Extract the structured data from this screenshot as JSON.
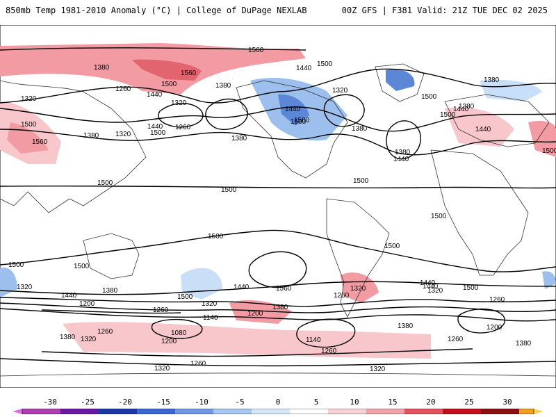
{
  "header": {
    "left": "850mb Temp 1981-2010 Anomaly (°C) | College of DuPage NEXLAB",
    "right": "00Z GFS | F381 Valid: 21Z TUE DEC 02 2025"
  },
  "map": {
    "contour_labels": [
      "1560",
      "1500",
      "1380",
      "1320",
      "1440",
      "1500",
      "1560",
      "1320",
      "1380",
      "1440",
      "1500",
      "1380",
      "1320",
      "1260",
      "1440",
      "1500",
      "1500",
      "1440",
      "1500",
      "1380",
      "1440",
      "1380",
      "1500",
      "1560",
      "1380",
      "1320",
      "1260",
      "1500",
      "1380",
      "1500",
      "1440",
      "1500",
      "1500",
      "1500",
      "1380",
      "1440",
      "1500",
      "1500",
      "1500",
      "1500",
      "1500",
      "1440",
      "1560",
      "1320",
      "1440",
      "1500",
      "1320",
      "1380",
      "1440",
      "1200",
      "1260",
      "1320",
      "1380",
      "1260",
      "1440",
      "1320",
      "1500",
      "1200",
      "1140",
      "1080",
      "1260",
      "1200",
      "1380",
      "1320",
      "1380",
      "1260",
      "1260",
      "1140",
      "1260",
      "1320",
      "1380",
      "1320",
      "1200",
      "1260"
    ],
    "anomaly_colors": {
      "warm_light": "#f7c7cc",
      "warm": "#f29ba3",
      "warm_strong": "#e2646f",
      "cold_light": "#c9def7",
      "cold": "#9cbfee",
      "cold_strong": "#5c86d6"
    }
  },
  "colorbar": {
    "ticks": [
      "-30",
      "-25",
      "-20",
      "-15",
      "-10",
      "-5",
      "0",
      "5",
      "10",
      "15",
      "20",
      "25",
      "30"
    ],
    "colors": [
      "#b13fb3",
      "#6a18a8",
      "#1b38a8",
      "#3c67d6",
      "#6f99e6",
      "#a7c6f2",
      "#d7e7fa",
      "#ffffff",
      "#f8d2d6",
      "#f1a3aa",
      "#e45460",
      "#c40f1b",
      "#8b0e10",
      "#f0a020",
      "#ffd24a"
    ]
  }
}
